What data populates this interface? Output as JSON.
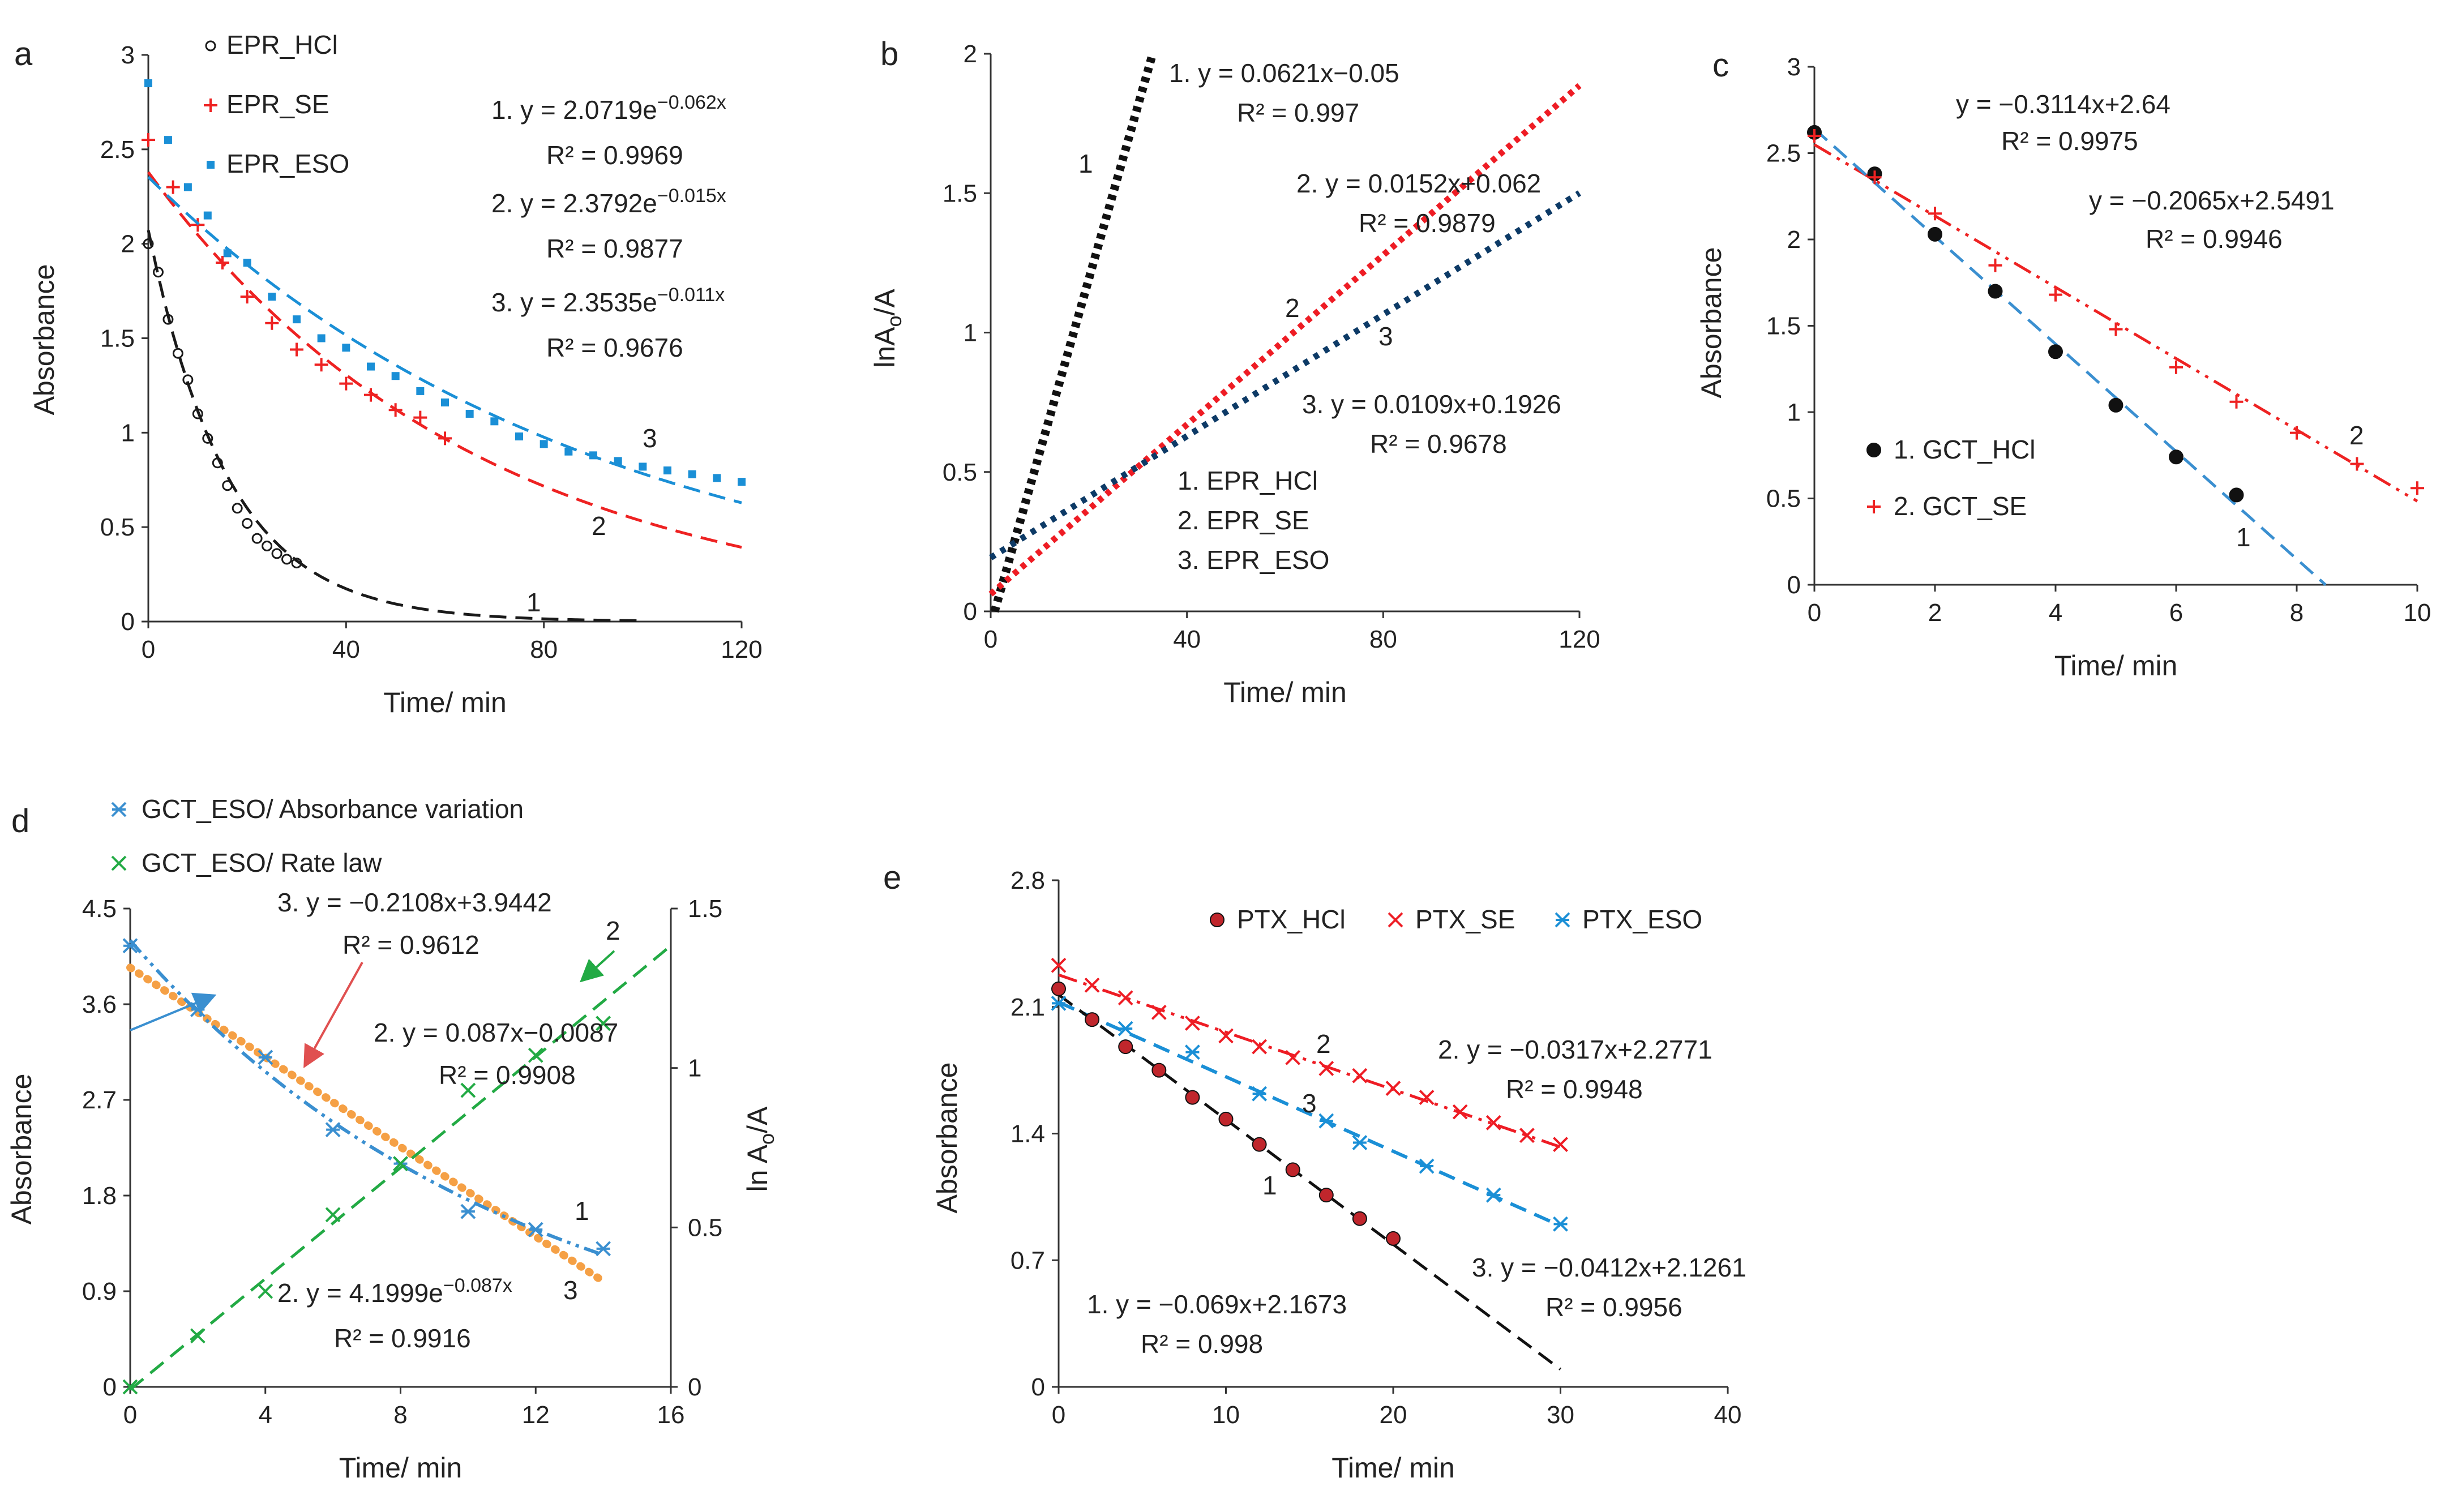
{
  "chart_data": [
    {
      "panel": "a",
      "type": "scatter",
      "xlabel": "Time/ min",
      "ylabel": "Absorbance",
      "xlim": [
        0,
        120
      ],
      "ylim": [
        0,
        3
      ],
      "xticks": [
        "0",
        "40",
        "80",
        "120"
      ],
      "yticks": [
        "0",
        "0.5",
        "1",
        "1.5",
        "2",
        "2.5",
        "3"
      ],
      "legend": [
        "EPR_HCl",
        "EPR_SE",
        "EPR_ESO"
      ],
      "equations": [
        "1. y = 2.0719e",
        "−0.062x",
        "R² = 0.9969",
        "2. y = 2.3792e",
        "−0.015x",
        "R² = 0.9877",
        "3. y = 2.3535e",
        "−0.011x",
        "R² = 0.9676"
      ],
      "curve_labels": [
        "1",
        "2",
        "3"
      ],
      "colors": {
        "s1": "#1a1a1a",
        "s2": "#ee2222",
        "s3": "#1a8fd6"
      },
      "series": [
        {
          "name": "EPR_HCl",
          "marker": "circle",
          "x": [
            0,
            2,
            4,
            6,
            8,
            10,
            12,
            14,
            16,
            18,
            20,
            22,
            24,
            26,
            28,
            30
          ],
          "y": [
            2.0,
            1.85,
            1.6,
            1.42,
            1.28,
            1.1,
            0.97,
            0.84,
            0.72,
            0.6,
            0.52,
            0.44,
            0.4,
            0.36,
            0.33,
            0.31
          ],
          "fit": {
            "a": 2.0719,
            "b": -0.062,
            "x_from": 0,
            "x_to": 100
          }
        },
        {
          "name": "EPR_SE",
          "marker": "plus",
          "x": [
            0,
            5,
            10,
            15,
            20,
            25,
            30,
            35,
            40,
            45,
            50,
            55,
            60
          ],
          "y": [
            2.55,
            2.3,
            2.1,
            1.9,
            1.72,
            1.58,
            1.44,
            1.36,
            1.26,
            1.2,
            1.12,
            1.08,
            0.97
          ],
          "fit": {
            "a": 2.3792,
            "b": -0.015,
            "x_from": 0,
            "x_to": 120
          }
        },
        {
          "name": "EPR_ESO",
          "marker": "square",
          "x": [
            0,
            4,
            8,
            12,
            16,
            20,
            25,
            30,
            35,
            40,
            45,
            50,
            55,
            60,
            65,
            70,
            75,
            80,
            85,
            90,
            95,
            100,
            105,
            110,
            115,
            120
          ],
          "y": [
            2.85,
            2.55,
            2.3,
            2.15,
            1.95,
            1.9,
            1.72,
            1.6,
            1.5,
            1.45,
            1.35,
            1.3,
            1.22,
            1.16,
            1.1,
            1.06,
            0.98,
            0.94,
            0.9,
            0.88,
            0.85,
            0.82,
            0.8,
            0.78,
            0.76,
            0.74
          ],
          "fit": {
            "a": 2.3535,
            "b": -0.011,
            "x_from": 0,
            "x_to": 120
          }
        }
      ]
    },
    {
      "panel": "b",
      "type": "line",
      "xlabel": "Time/ min",
      "ylabel_main": "lnA",
      "ylabel_sub": "o",
      "ylabel_tail": "/A",
      "xlim": [
        0,
        120
      ],
      "ylim": [
        0,
        2
      ],
      "xticks": [
        "0",
        "40",
        "80",
        "120"
      ],
      "yticks": [
        "0",
        "0.5",
        "1",
        "1.5",
        "2"
      ],
      "legend": [
        "1. EPR_HCl",
        "2. EPR_SE",
        "3. EPR_ESO"
      ],
      "equations": [
        "1. y = 0.0621x−0.05",
        "R² = 0.997",
        "2. y = 0.0152x+0.062",
        "R² = 0.9879",
        "3. y = 0.0109x+0.1926",
        "R² = 0.9678"
      ],
      "curve_labels": [
        "1",
        "2",
        "3"
      ],
      "colors": {
        "s1": "#111111",
        "s2": "#ee1c24",
        "s3": "#0d3a66"
      },
      "series": [
        {
          "name": "EPR_HCl",
          "slope": 0.0621,
          "intercept": -0.05,
          "x_from": 0.8,
          "x_to": 33
        },
        {
          "name": "EPR_SE",
          "slope": 0.0152,
          "intercept": 0.062,
          "x_from": 0,
          "x_to": 120
        },
        {
          "name": "EPR_ESO",
          "slope": 0.0109,
          "intercept": 0.1926,
          "x_from": 0,
          "x_to": 120
        }
      ]
    },
    {
      "panel": "c",
      "type": "scatter",
      "xlabel": "Time/ min",
      "ylabel": "Absorbance",
      "xlim": [
        0,
        10
      ],
      "ylim": [
        0,
        3
      ],
      "xticks": [
        "0",
        "2",
        "4",
        "6",
        "8",
        "10"
      ],
      "yticks": [
        "0",
        "0.5",
        "1",
        "1.5",
        "2",
        "2.5",
        "3"
      ],
      "legend": [
        "1. GCT_HCl",
        "2. GCT_SE"
      ],
      "equations": [
        "y = −0.3114x+2.64",
        "R² = 0.9975",
        "y = −0.2065x+2.5491",
        "R² = 0.9946"
      ],
      "curve_labels": [
        "1",
        "2"
      ],
      "colors": {
        "s1": "#111111",
        "s2": "#ee2222",
        "fit1": "#3a8fd0"
      },
      "series": [
        {
          "name": "GCT_HCl",
          "marker": "dot",
          "x": [
            0,
            1,
            2,
            3,
            4,
            5,
            6,
            7
          ],
          "y": [
            2.62,
            2.38,
            2.03,
            1.7,
            1.35,
            1.04,
            0.74,
            0.52
          ],
          "fit": {
            "slope": -0.3114,
            "intercept": 2.64,
            "x_from": 0,
            "x_to": 8.48
          }
        },
        {
          "name": "GCT_SE",
          "marker": "plus",
          "x": [
            0,
            1,
            2,
            3,
            4,
            5,
            6,
            7,
            8,
            9,
            10
          ],
          "y": [
            2.6,
            2.36,
            2.15,
            1.85,
            1.68,
            1.48,
            1.26,
            1.06,
            0.88,
            0.7,
            0.56
          ],
          "fit": {
            "slope": -0.2065,
            "intercept": 2.5491,
            "x_from": 0,
            "x_to": 10
          }
        }
      ]
    },
    {
      "panel": "d",
      "type": "scatter",
      "xlabel": "Time/ min",
      "ylabel": "Absorbance",
      "y2label_main": "ln A",
      "y2label_sub": "o",
      "y2label_tail": "/A",
      "xlim": [
        0,
        16
      ],
      "ylim": [
        0,
        4.5
      ],
      "y2lim": [
        0,
        1.5
      ],
      "xticks": [
        "0",
        "4",
        "8",
        "12",
        "16"
      ],
      "yticks": [
        "0",
        "0.9",
        "1.8",
        "2.7",
        "3.6",
        "4.5"
      ],
      "y2ticks": [
        "0",
        "0.5",
        "1",
        "1.5"
      ],
      "legend": [
        "GCT_ESO/ Absorbance variation",
        "GCT_ESO/ Rate law"
      ],
      "equations": [
        "3. y = −0.2108x+3.9442",
        "R² = 0.9612",
        "2. y = 0.087x−0.0087",
        "R² = 0.9908",
        "2. y = 4.1999e",
        "−0.087x",
        "R² = 0.9916"
      ],
      "curve_labels": [
        "1",
        "2",
        "3"
      ],
      "colors": {
        "abs": "#3a8fd0",
        "rate": "#22aa44",
        "lin": "#f5a045",
        "arrow": "#e05050"
      },
      "series": [
        {
          "name": "GCT_ESO/ Absorbance variation",
          "axis": "left",
          "marker": "star",
          "x": [
            0,
            2,
            4,
            6,
            8,
            10,
            12,
            14
          ],
          "y": [
            4.15,
            3.55,
            3.1,
            2.42,
            2.1,
            1.65,
            1.48,
            1.3
          ],
          "fit": {
            "a": 4.1999,
            "b": -0.087,
            "x_from": 0,
            "x_to": 14
          }
        },
        {
          "name": "GCT_ESO/ Rate law",
          "axis": "right",
          "marker": "x",
          "x": [
            0,
            2,
            4,
            6,
            8,
            10,
            12,
            14
          ],
          "y": [
            0,
            0.16,
            0.3,
            0.54,
            0.7,
            0.93,
            1.04,
            1.14
          ],
          "fit": {
            "slope": 0.087,
            "intercept": -0.0087,
            "x_from": 0,
            "x_to": 16
          }
        },
        {
          "name": "linear fit 3",
          "axis": "left",
          "marker": "none",
          "fit": {
            "slope": -0.2108,
            "intercept": 3.9442,
            "x_from": 0,
            "x_to": 14
          }
        }
      ]
    },
    {
      "panel": "e",
      "type": "scatter",
      "xlabel": "Time/ min",
      "ylabel": "Absorbance",
      "xlim": [
        0,
        40
      ],
      "ylim": [
        0,
        2.8
      ],
      "xticks": [
        "0",
        "10",
        "20",
        "30",
        "40"
      ],
      "yticks": [
        "0",
        "0.7",
        "1.4",
        "2.1",
        "2.8"
      ],
      "legend": [
        "PTX_HCl",
        "PTX_SE",
        "PTX_ESO"
      ],
      "equations": [
        "2. y = −0.0317x+2.2771",
        "R² = 0.9948",
        "3. y = −0.0412x+2.1261",
        "R² = 0.9956",
        "1. y = −0.069x+2.1673",
        "R² = 0.998"
      ],
      "curve_labels": [
        "1",
        "2",
        "3"
      ],
      "colors": {
        "s1": "#111111",
        "s1fill": "#c0262c",
        "s2": "#ee1c24",
        "s3": "#1a8fd6"
      },
      "series": [
        {
          "name": "PTX_HCl",
          "marker": "dot",
          "x": [
            0,
            2,
            4,
            6,
            8,
            10,
            12,
            14,
            16,
            18,
            20
          ],
          "y": [
            2.2,
            2.03,
            1.88,
            1.75,
            1.6,
            1.48,
            1.34,
            1.2,
            1.06,
            0.93,
            0.82
          ],
          "fit": {
            "slope": -0.069,
            "intercept": 2.1673,
            "x_from": 0,
            "x_to": 30
          }
        },
        {
          "name": "PTX_SE",
          "marker": "x",
          "x": [
            0,
            2,
            4,
            6,
            8,
            10,
            12,
            14,
            16,
            18,
            20,
            22,
            24,
            26,
            28,
            30
          ],
          "y": [
            2.33,
            2.22,
            2.15,
            2.07,
            2.01,
            1.94,
            1.88,
            1.82,
            1.76,
            1.72,
            1.65,
            1.6,
            1.52,
            1.46,
            1.39,
            1.34
          ],
          "fit": {
            "slope": -0.0317,
            "intercept": 2.2771,
            "x_from": 0,
            "x_to": 30
          }
        },
        {
          "name": "PTX_ESO",
          "marker": "star",
          "x": [
            0,
            4,
            8,
            12,
            16,
            18,
            22,
            26,
            30
          ],
          "y": [
            2.12,
            1.98,
            1.85,
            1.62,
            1.47,
            1.35,
            1.22,
            1.06,
            0.9
          ],
          "fit": {
            "slope": -0.0412,
            "intercept": 2.1261,
            "x_from": 0,
            "x_to": 30
          }
        }
      ]
    }
  ]
}
